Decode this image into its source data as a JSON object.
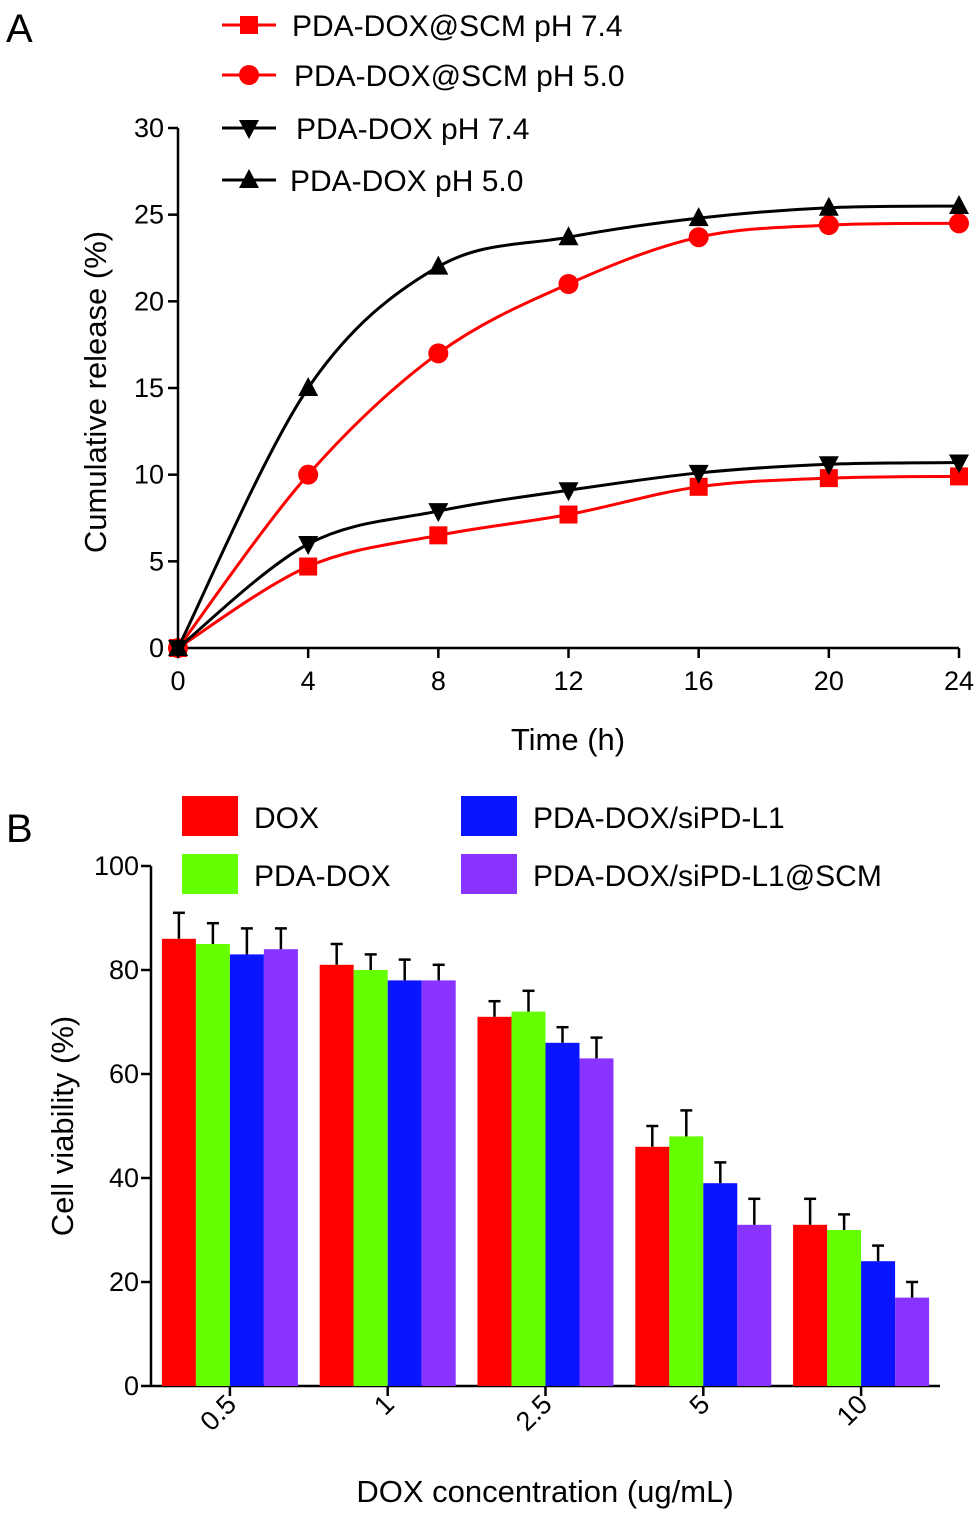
{
  "figure": {
    "panels": [
      "A",
      "B"
    ]
  },
  "chart_data": [
    {
      "type": "line",
      "panel": "A",
      "xlabel": "Time (h)",
      "ylabel": "Cumulative release (%)",
      "xlim": [
        0,
        24
      ],
      "ylim": [
        0,
        30
      ],
      "xticks": [
        "0",
        "4",
        "8",
        "12",
        "16",
        "20",
        "24"
      ],
      "yticks": [
        "0",
        "5",
        "10",
        "15",
        "20",
        "25",
        "30"
      ],
      "x": [
        0,
        4,
        8,
        12,
        16,
        20,
        24
      ],
      "grid": false,
      "legend_position": "top-left",
      "series": [
        {
          "name": "PDA-DOX@SCM pH 7.4",
          "color": "#ff0000",
          "marker": "square",
          "values": [
            0,
            4.7,
            6.5,
            7.7,
            9.3,
            9.8,
            9.9
          ]
        },
        {
          "name": "PDA-DOX@SCM  pH 5.0",
          "color": "#ff0000",
          "marker": "circle",
          "values": [
            0,
            10.0,
            17.0,
            21.0,
            23.7,
            24.4,
            24.5
          ]
        },
        {
          "name": "PDA-DOX pH 7.4",
          "color": "#000000",
          "marker": "triangle-down",
          "values": [
            0,
            6.0,
            7.9,
            9.1,
            10.1,
            10.6,
            10.7
          ]
        },
        {
          "name": "PDA-DOX  pH 5.0",
          "color": "#000000",
          "marker": "triangle-up",
          "values": [
            0,
            15.0,
            22.0,
            23.7,
            24.8,
            25.4,
            25.5
          ]
        }
      ]
    },
    {
      "type": "bar",
      "panel": "B",
      "xlabel": "DOX concentration (ug/mL)",
      "ylabel": "Cell viability (%)",
      "ylim": [
        0,
        100
      ],
      "yticks": [
        "0",
        "20",
        "40",
        "60",
        "80",
        "100"
      ],
      "categories": [
        "0.5",
        "1",
        "2.5",
        "5",
        "10"
      ],
      "grid": false,
      "legend_position": "top",
      "series": [
        {
          "name": "DOX",
          "color": "#ff0000",
          "values": [
            86,
            81,
            71,
            46,
            31
          ],
          "errors": [
            5,
            4,
            3,
            4,
            5
          ]
        },
        {
          "name": "PDA-DOX",
          "color": "#66ff00",
          "values": [
            85,
            80,
            72,
            48,
            30
          ],
          "errors": [
            4,
            3,
            4,
            5,
            3
          ]
        },
        {
          "name": "PDA-DOX/siPD-L1",
          "color": "#0a14ff",
          "values": [
            83,
            78,
            66,
            39,
            24
          ],
          "errors": [
            5,
            4,
            3,
            4,
            3
          ]
        },
        {
          "name": "PDA-DOX/siPD-L1@SCM",
          "color": "#8833ff",
          "values": [
            84,
            78,
            63,
            31,
            17
          ],
          "errors": [
            4,
            3,
            4,
            5,
            3
          ]
        }
      ]
    }
  ]
}
